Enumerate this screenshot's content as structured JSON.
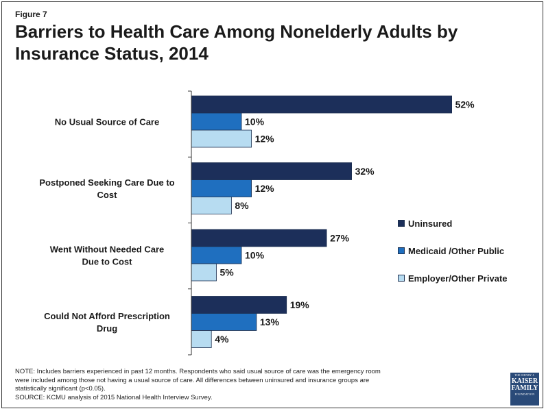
{
  "figure_label": "Figure 7",
  "title": "Barriers to Health Care Among Nonelderly Adults by Insurance Status, 2014",
  "note_lines": [
    "NOTE: Includes barriers experienced in past 12 months. Respondents who said usual source of care was the emergency room",
    "were included among those not having a usual source of care. All differences between uninsured and insurance groups are",
    "statistically significant (p<0.05).",
    "SOURCE: KCMU analysis of 2015 National Health Interview Survey."
  ],
  "logo": {
    "line1": "THE HENRY J.",
    "line2": "KAISER",
    "line3": "FAMILY",
    "line4": "FOUNDATION"
  },
  "colors": {
    "uninsured": "#1c2f5a",
    "medicaid": "#1f6fbf",
    "employer": "#b7dcf1"
  },
  "chart_data": {
    "type": "bar",
    "orientation": "horizontal",
    "categories": [
      [
        "No Usual Source of Care"
      ],
      [
        "Postponed Seeking Care Due to",
        "Cost"
      ],
      [
        "Went Without Needed Care",
        "Due to Cost"
      ],
      [
        "Could Not Afford Prescription",
        "Drug"
      ]
    ],
    "series": [
      {
        "name": "Uninsured",
        "values": [
          52,
          32,
          27,
          19
        ]
      },
      {
        "name": "Medicaid /Other Public",
        "values": [
          10,
          12,
          10,
          13
        ]
      },
      {
        "name": "Employer/Other Private",
        "values": [
          12,
          8,
          5,
          4
        ]
      }
    ],
    "value_suffix": "%",
    "xlim": [
      0,
      60
    ],
    "legend_position": "right",
    "grid": false
  }
}
